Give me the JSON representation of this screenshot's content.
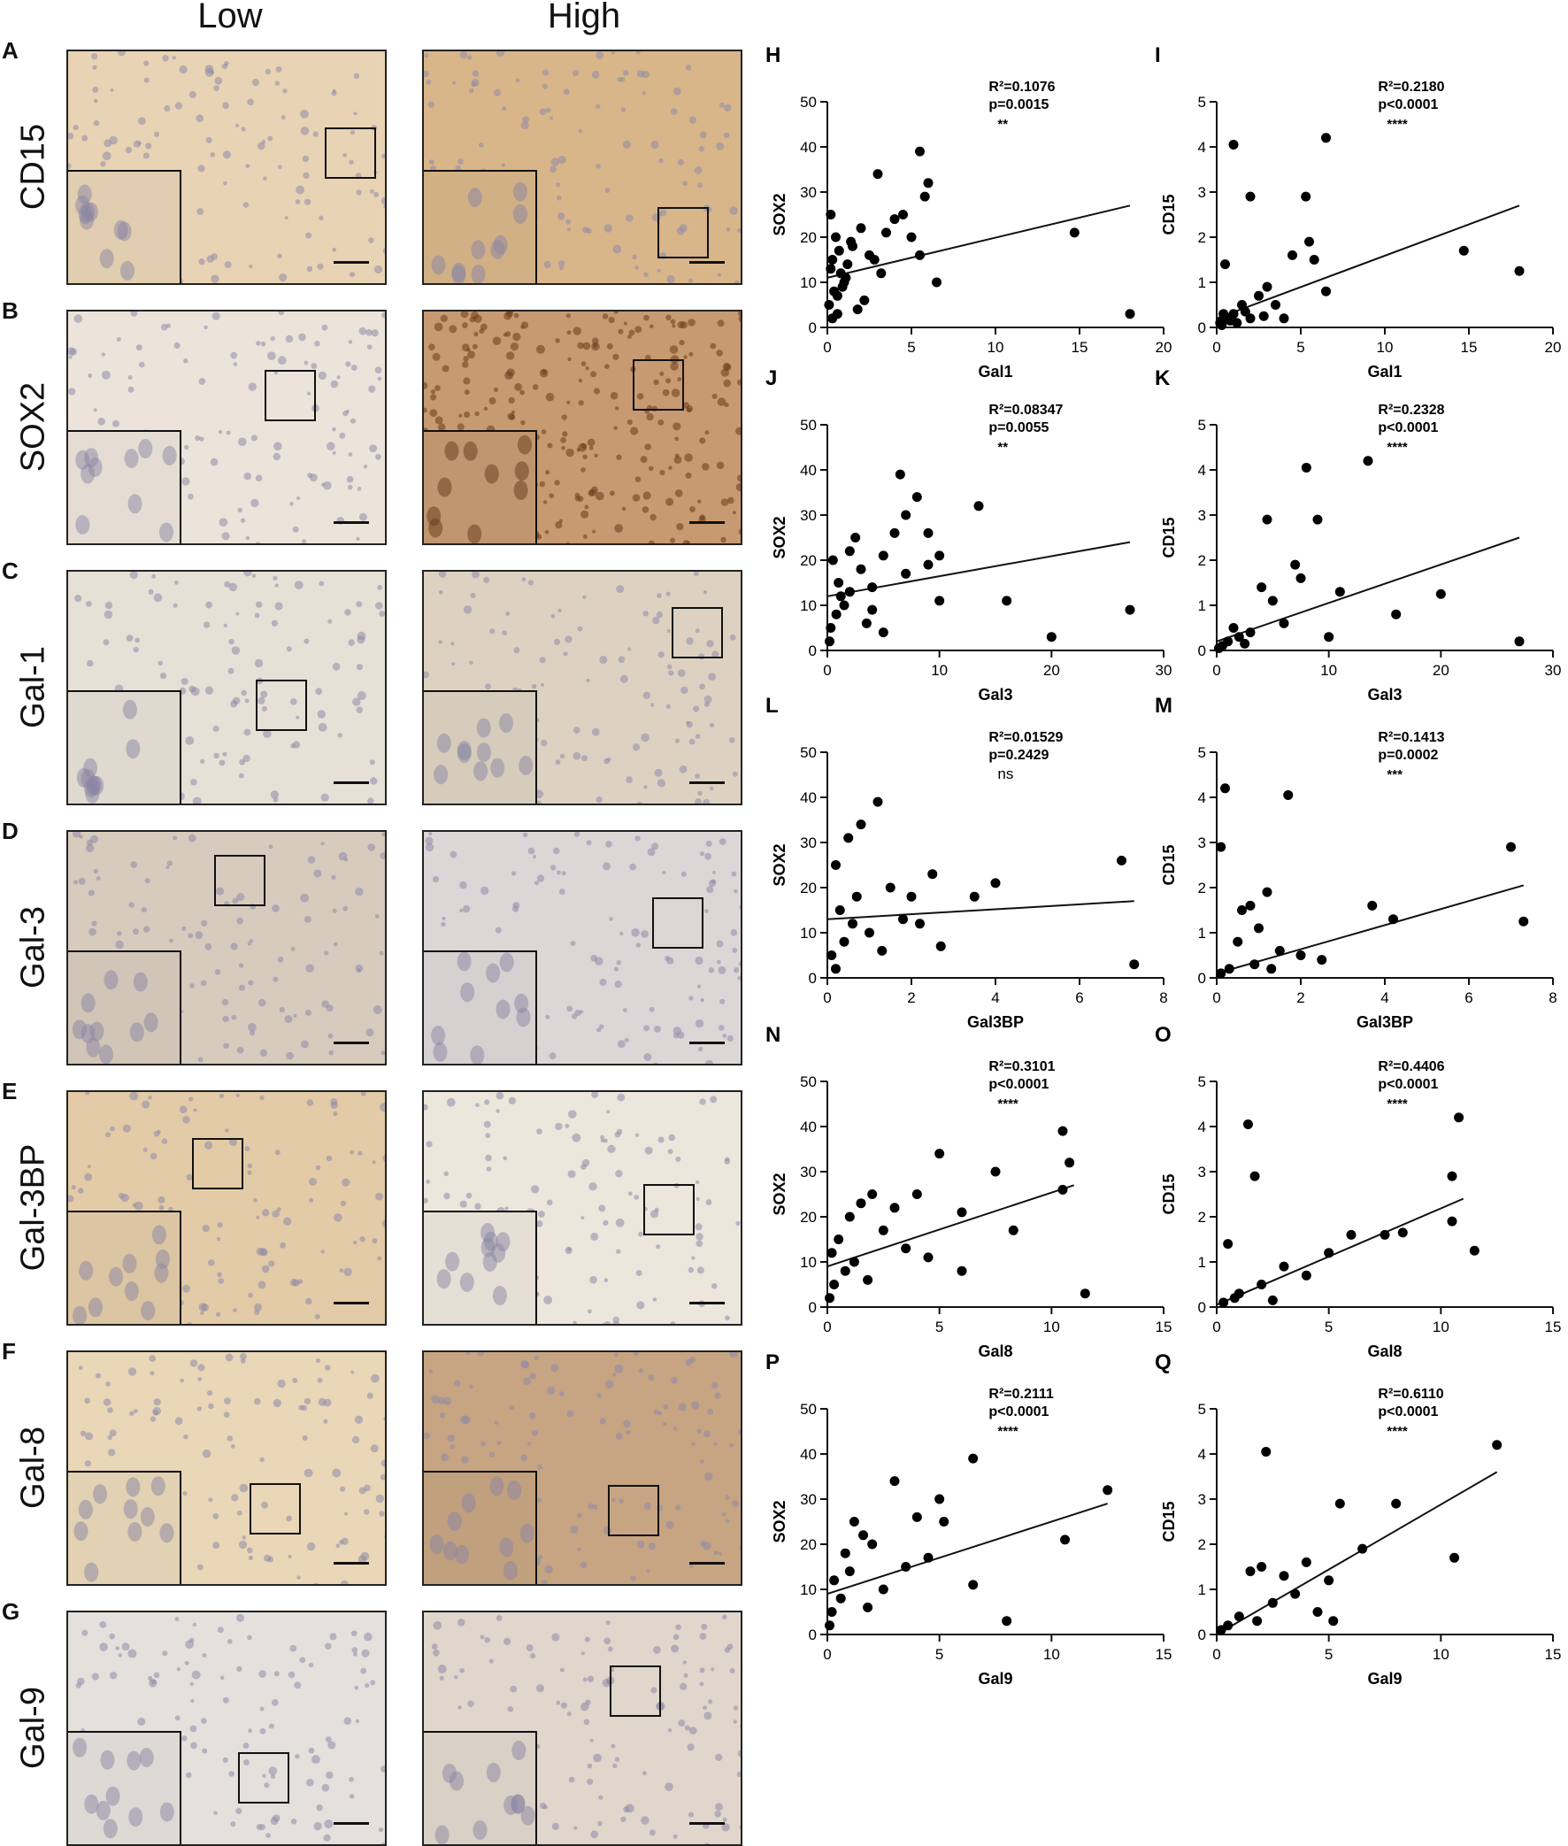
{
  "columns": {
    "low": "Low",
    "high": "High"
  },
  "rows": [
    {
      "letter": "A",
      "label": "CD15",
      "low_bg": "#e8d3b4",
      "high_bg": "#d9b58a"
    },
    {
      "letter": "B",
      "label": "SOX2",
      "low_bg": "#ece4da",
      "high_bg": "#c79a72"
    },
    {
      "letter": "C",
      "label": "Gal-1",
      "low_bg": "#e6e0d6",
      "high_bg": "#ddd2c2"
    },
    {
      "letter": "D",
      "label": "Gal-3",
      "low_bg": "#d7cbbd",
      "high_bg": "#dcd7d6"
    },
    {
      "letter": "E",
      "label": "Gal-3BP",
      "low_bg": "#e3cba7",
      "high_bg": "#ece6dc"
    },
    {
      "letter": "F",
      "label": "Gal-8",
      "low_bg": "#e9d7b8",
      "high_bg": "#c7a582"
    },
    {
      "letter": "G",
      "label": "Gal-9",
      "low_bg": "#e4e0dc",
      "high_bg": "#e0d6cc"
    }
  ],
  "chart_data": [
    {
      "letter": "H",
      "type": "scatter",
      "xlabel": "Gal1",
      "ylabel": "SOX2",
      "xlim": [
        0,
        20
      ],
      "ylim": [
        0,
        50
      ],
      "xticks": [
        0,
        5,
        10,
        15,
        20
      ],
      "yticks": [
        0,
        10,
        20,
        30,
        40,
        50
      ],
      "stats": {
        "r2": "R²=0.1076",
        "p": "p=0.0015",
        "sig": "**"
      },
      "fit": [
        [
          0,
          11
        ],
        [
          18,
          27
        ]
      ],
      "points": [
        [
          0.2,
          25
        ],
        [
          0.5,
          20
        ],
        [
          0.3,
          15
        ],
        [
          0.8,
          12
        ],
        [
          1,
          10
        ],
        [
          0.4,
          8
        ],
        [
          0.1,
          5
        ],
        [
          0.6,
          3
        ],
        [
          1.5,
          18
        ],
        [
          2,
          22
        ],
        [
          1.2,
          14
        ],
        [
          0.9,
          9
        ],
        [
          2.5,
          16
        ],
        [
          3,
          34
        ],
        [
          3.5,
          21
        ],
        [
          4,
          24
        ],
        [
          4.5,
          25
        ],
        [
          5,
          20
        ],
        [
          5.5,
          39
        ],
        [
          6,
          32
        ],
        [
          5.8,
          29
        ],
        [
          6.5,
          10
        ],
        [
          5.5,
          16
        ],
        [
          3.2,
          12
        ],
        [
          2.2,
          6
        ],
        [
          1.8,
          4
        ],
        [
          0.7,
          17
        ],
        [
          1.1,
          11
        ],
        [
          0.3,
          2
        ],
        [
          14.7,
          21
        ],
        [
          18,
          3
        ],
        [
          0.2,
          13
        ],
        [
          0.6,
          7
        ],
        [
          1.4,
          19
        ],
        [
          2.8,
          15
        ]
      ]
    },
    {
      "letter": "I",
      "type": "scatter",
      "xlabel": "Gal1",
      "ylabel": "CD15",
      "xlim": [
        0,
        20
      ],
      "ylim": [
        0,
        5
      ],
      "xticks": [
        0,
        5,
        10,
        15,
        20
      ],
      "yticks": [
        0,
        1,
        2,
        3,
        4,
        5
      ],
      "stats": {
        "r2": "R²=0.2180",
        "p": "p<0.0001",
        "sig": "****"
      },
      "fit": [
        [
          0,
          0.2
        ],
        [
          18,
          2.7
        ]
      ],
      "points": [
        [
          1,
          4.05
        ],
        [
          6.5,
          4.2
        ],
        [
          2,
          2.9
        ],
        [
          5.3,
          2.9
        ],
        [
          0.5,
          1.4
        ],
        [
          5.5,
          1.9
        ],
        [
          5.8,
          1.5
        ],
        [
          4.5,
          1.6
        ],
        [
          3,
          0.9
        ],
        [
          2.5,
          0.7
        ],
        [
          1.5,
          0.5
        ],
        [
          1,
          0.3
        ],
        [
          0.5,
          0.2
        ],
        [
          0.2,
          0.1
        ],
        [
          0.3,
          0.05
        ],
        [
          0.8,
          0.15
        ],
        [
          1.2,
          0.1
        ],
        [
          2,
          0.2
        ],
        [
          3.5,
          0.5
        ],
        [
          4,
          0.2
        ],
        [
          6.5,
          0.8
        ],
        [
          14.7,
          1.7
        ],
        [
          18,
          1.25
        ],
        [
          0.4,
          0.3
        ],
        [
          1.7,
          0.35
        ],
        [
          2.8,
          0.25
        ]
      ]
    },
    {
      "letter": "J",
      "type": "scatter",
      "xlabel": "Gal3",
      "ylabel": "SOX2",
      "xlim": [
        0,
        30
      ],
      "ylim": [
        0,
        50
      ],
      "xticks": [
        0,
        10,
        20,
        30
      ],
      "yticks": [
        0,
        10,
        20,
        30,
        40,
        50
      ],
      "stats": {
        "r2": "R²=0.08347",
        "p": "p=0.0055",
        "sig": "**"
      },
      "fit": [
        [
          0,
          12
        ],
        [
          27,
          24
        ]
      ],
      "points": [
        [
          0.5,
          20
        ],
        [
          1,
          15
        ],
        [
          1.5,
          10
        ],
        [
          2,
          22
        ],
        [
          2.5,
          25
        ],
        [
          3,
          18
        ],
        [
          4,
          14
        ],
        [
          5,
          21
        ],
        [
          6,
          26
        ],
        [
          6.5,
          39
        ],
        [
          7,
          30
        ],
        [
          8,
          34
        ],
        [
          9,
          26
        ],
        [
          10,
          21
        ],
        [
          13.5,
          32
        ],
        [
          16,
          11
        ],
        [
          20,
          3
        ],
        [
          27,
          9
        ],
        [
          0.3,
          5
        ],
        [
          0.8,
          8
        ],
        [
          1.2,
          12
        ],
        [
          3.5,
          6
        ],
        [
          5,
          4
        ],
        [
          7,
          17
        ],
        [
          9,
          19
        ],
        [
          10,
          11
        ],
        [
          0.2,
          2
        ],
        [
          2,
          13
        ],
        [
          4,
          9
        ]
      ]
    },
    {
      "letter": "K",
      "type": "scatter",
      "xlabel": "Gal3",
      "ylabel": "CD15",
      "xlim": [
        0,
        30
      ],
      "ylim": [
        0,
        5
      ],
      "xticks": [
        0,
        10,
        20,
        30
      ],
      "yticks": [
        0,
        1,
        2,
        3,
        4,
        5
      ],
      "stats": {
        "r2": "R²=0.2328",
        "p": "p<0.0001",
        "sig": "****"
      },
      "fit": [
        [
          0,
          0.2
        ],
        [
          27,
          2.5
        ]
      ],
      "points": [
        [
          4.5,
          2.9
        ],
        [
          8,
          4.05
        ],
        [
          13.5,
          4.2
        ],
        [
          9,
          2.9
        ],
        [
          7,
          1.9
        ],
        [
          7.5,
          1.6
        ],
        [
          4,
          1.4
        ],
        [
          5,
          1.1
        ],
        [
          6,
          0.6
        ],
        [
          3,
          0.4
        ],
        [
          2,
          0.3
        ],
        [
          1,
          0.2
        ],
        [
          0.5,
          0.1
        ],
        [
          10,
          0.3
        ],
        [
          11,
          1.3
        ],
        [
          16,
          0.8
        ],
        [
          20,
          1.25
        ],
        [
          27,
          0.2
        ],
        [
          1.5,
          0.5
        ],
        [
          2.5,
          0.15
        ],
        [
          0.2,
          0.05
        ]
      ]
    },
    {
      "letter": "L",
      "type": "scatter",
      "xlabel": "Gal3BP",
      "ylabel": "SOX2",
      "xlim": [
        0,
        8
      ],
      "ylim": [
        0,
        50
      ],
      "xticks": [
        0,
        2,
        4,
        6,
        8
      ],
      "yticks": [
        0,
        10,
        20,
        30,
        40,
        50
      ],
      "stats": {
        "r2": "R²=0.01529",
        "p": "p=0.2429",
        "sig": "ns"
      },
      "fit": [
        [
          0,
          13
        ],
        [
          7.3,
          17
        ]
      ],
      "points": [
        [
          0.2,
          25
        ],
        [
          0.5,
          31
        ],
        [
          0.8,
          34
        ],
        [
          1.2,
          39
        ],
        [
          0.3,
          15
        ],
        [
          0.6,
          12
        ],
        [
          1,
          10
        ],
        [
          1.5,
          20
        ],
        [
          2,
          18
        ],
        [
          2.5,
          23
        ],
        [
          3.5,
          18
        ],
        [
          4,
          21
        ],
        [
          7,
          26
        ],
        [
          7.3,
          3
        ],
        [
          0.1,
          5
        ],
        [
          0.4,
          8
        ],
        [
          1.3,
          6
        ],
        [
          2.2,
          12
        ],
        [
          2.7,
          7
        ],
        [
          0.7,
          18
        ],
        [
          1.8,
          13
        ],
        [
          0.2,
          2
        ]
      ]
    },
    {
      "letter": "M",
      "type": "scatter",
      "xlabel": "Gal3BP",
      "ylabel": "CD15",
      "xlim": [
        0,
        8
      ],
      "ylim": [
        0,
        5
      ],
      "xticks": [
        0,
        2,
        4,
        6,
        8
      ],
      "yticks": [
        0,
        1,
        2,
        3,
        4,
        5
      ],
      "stats": {
        "r2": "R²=0.1413",
        "p": "p=0.0002",
        "sig": "***"
      },
      "fit": [
        [
          0,
          0.1
        ],
        [
          7.3,
          2.05
        ]
      ],
      "points": [
        [
          0.2,
          4.2
        ],
        [
          1.7,
          4.05
        ],
        [
          0.1,
          2.9
        ],
        [
          7,
          2.9
        ],
        [
          1.2,
          1.9
        ],
        [
          0.6,
          1.5
        ],
        [
          0.8,
          1.6
        ],
        [
          3.7,
          1.6
        ],
        [
          4.2,
          1.3
        ],
        [
          7.3,
          1.25
        ],
        [
          1,
          1.1
        ],
        [
          0.5,
          0.8
        ],
        [
          1.5,
          0.6
        ],
        [
          2,
          0.5
        ],
        [
          2.5,
          0.4
        ],
        [
          0.3,
          0.2
        ],
        [
          0.1,
          0.1
        ],
        [
          0.9,
          0.3
        ],
        [
          1.3,
          0.2
        ]
      ]
    },
    {
      "letter": "N",
      "type": "scatter",
      "xlabel": "Gal8",
      "ylabel": "SOX2",
      "xlim": [
        0,
        15
      ],
      "ylim": [
        0,
        50
      ],
      "xticks": [
        0,
        5,
        10,
        15
      ],
      "yticks": [
        0,
        10,
        20,
        30,
        40,
        50
      ],
      "stats": {
        "r2": "R²=0.3101",
        "p": "p<0.0001",
        "sig": "****"
      },
      "fit": [
        [
          0,
          9
        ],
        [
          11,
          27
        ]
      ],
      "points": [
        [
          0.2,
          12
        ],
        [
          0.5,
          15
        ],
        [
          1,
          20
        ],
        [
          1.5,
          23
        ],
        [
          2,
          25
        ],
        [
          3,
          22
        ],
        [
          4,
          25
        ],
        [
          5,
          34
        ],
        [
          6,
          21
        ],
        [
          7.5,
          30
        ],
        [
          8.3,
          17
        ],
        [
          10.5,
          39
        ],
        [
          10.8,
          32
        ],
        [
          10.5,
          26
        ],
        [
          11.5,
          3
        ],
        [
          0.3,
          5
        ],
        [
          0.8,
          8
        ],
        [
          1.2,
          10
        ],
        [
          2.5,
          17
        ],
        [
          3.5,
          13
        ],
        [
          4.5,
          11
        ],
        [
          6,
          8
        ],
        [
          0.1,
          2
        ],
        [
          1.8,
          6
        ]
      ]
    },
    {
      "letter": "O",
      "type": "scatter",
      "xlabel": "Gal8",
      "ylabel": "CD15",
      "xlim": [
        0,
        15
      ],
      "ylim": [
        0,
        5
      ],
      "xticks": [
        0,
        5,
        10,
        15
      ],
      "yticks": [
        0,
        1,
        2,
        3,
        4,
        5
      ],
      "stats": {
        "r2": "R²=0.4406",
        "p": "p<0.0001",
        "sig": "****"
      },
      "fit": [
        [
          0,
          0.05
        ],
        [
          11,
          2.4
        ]
      ],
      "points": [
        [
          1.4,
          4.05
        ],
        [
          10.8,
          4.2
        ],
        [
          1.7,
          2.9
        ],
        [
          10.5,
          2.9
        ],
        [
          10.5,
          1.9
        ],
        [
          0.5,
          1.4
        ],
        [
          6,
          1.6
        ],
        [
          7.5,
          1.6
        ],
        [
          8.3,
          1.65
        ],
        [
          11.5,
          1.25
        ],
        [
          5,
          1.2
        ],
        [
          3,
          0.9
        ],
        [
          4,
          0.7
        ],
        [
          2,
          0.5
        ],
        [
          1,
          0.3
        ],
        [
          0.3,
          0.1
        ],
        [
          0.8,
          0.2
        ],
        [
          2.5,
          0.15
        ]
      ]
    },
    {
      "letter": "P",
      "type": "scatter",
      "xlabel": "Gal9",
      "ylabel": "SOX2",
      "xlim": [
        0,
        15
      ],
      "ylim": [
        0,
        50
      ],
      "xticks": [
        0,
        5,
        10,
        15
      ],
      "yticks": [
        0,
        10,
        20,
        30,
        40,
        50
      ],
      "stats": {
        "r2": "R²=0.2111",
        "p": "p<0.0001",
        "sig": "****"
      },
      "fit": [
        [
          0,
          9
        ],
        [
          12.5,
          29
        ]
      ],
      "points": [
        [
          0.3,
          12
        ],
        [
          0.8,
          18
        ],
        [
          1.2,
          25
        ],
        [
          1.6,
          22
        ],
        [
          2,
          20
        ],
        [
          3,
          34
        ],
        [
          4,
          26
        ],
        [
          5,
          30
        ],
        [
          5.2,
          25
        ],
        [
          6.5,
          39
        ],
        [
          6.5,
          11
        ],
        [
          8,
          3
        ],
        [
          10.6,
          21
        ],
        [
          12.5,
          32
        ],
        [
          0.2,
          5
        ],
        [
          0.6,
          8
        ],
        [
          1,
          14
        ],
        [
          2.5,
          10
        ],
        [
          3.5,
          15
        ],
        [
          4.5,
          17
        ],
        [
          0.1,
          2
        ],
        [
          1.8,
          6
        ]
      ]
    },
    {
      "letter": "Q",
      "type": "scatter",
      "xlabel": "Gal9",
      "ylabel": "CD15",
      "xlim": [
        0,
        15
      ],
      "ylim": [
        0,
        5
      ],
      "xticks": [
        0,
        5,
        10,
        15
      ],
      "yticks": [
        0,
        1,
        2,
        3,
        4,
        5
      ],
      "stats": {
        "r2": "R²=0.6110",
        "p": "p<0.0001",
        "sig": "****"
      },
      "fit": [
        [
          0,
          0
        ],
        [
          12.5,
          3.6
        ]
      ],
      "points": [
        [
          2.2,
          4.05
        ],
        [
          12.5,
          4.2
        ],
        [
          5.5,
          2.9
        ],
        [
          8,
          2.9
        ],
        [
          6.5,
          1.9
        ],
        [
          10.6,
          1.7
        ],
        [
          1.5,
          1.4
        ],
        [
          2,
          1.5
        ],
        [
          3,
          1.3
        ],
        [
          4,
          1.6
        ],
        [
          5,
          1.2
        ],
        [
          3.5,
          0.9
        ],
        [
          2.5,
          0.7
        ],
        [
          1,
          0.4
        ],
        [
          0.5,
          0.2
        ],
        [
          0.2,
          0.1
        ],
        [
          1.8,
          0.3
        ],
        [
          4.5,
          0.5
        ],
        [
          5.2,
          0.3
        ]
      ]
    }
  ]
}
